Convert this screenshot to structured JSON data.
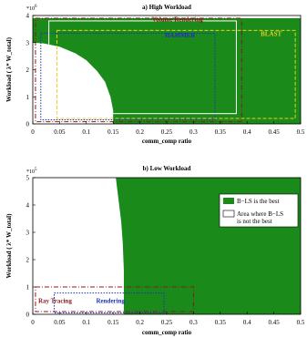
{
  "chart_data": [
    {
      "type": "area",
      "title": "a)  High Workload",
      "xlabel": "comm_comp ratio",
      "ylabel": "Workload ( λ* W_total)",
      "x_ticks": [
        0,
        0.05,
        0.1,
        0.15,
        0.2,
        0.25,
        0.3,
        0.35,
        0.4,
        0.45,
        0.5
      ],
      "y_ticks": [
        0,
        1,
        2,
        3,
        4
      ],
      "y_multiplier": "*10",
      "y_multiplier_exp": "6",
      "xlim": [
        0,
        0.5
      ],
      "ylim": [
        0,
        4
      ],
      "region": {
        "label": "B-LS is the best",
        "color": "#1a8a1a",
        "white_region_boundary": {
          "x": [
            0,
            0.02,
            0.05,
            0.08,
            0.1,
            0.12,
            0.135,
            0.145,
            0.15,
            0.15
          ],
          "y": [
            3.0,
            2.97,
            2.85,
            2.6,
            2.35,
            1.95,
            1.55,
            1.0,
            0.5,
            0
          ]
        },
        "extent": {
          "x": [
            0,
            0.5
          ],
          "y": [
            0,
            3.9
          ]
        }
      },
      "application_boxes": [
        {
          "label": "Volume Rendering",
          "color": "#8b1a1a",
          "x": [
            0.005,
            0.39
          ],
          "y": [
            0.08,
            3.9
          ],
          "line": "dash-dot"
        },
        {
          "label": "BLAST",
          "color": "#e8d020",
          "x": [
            0.045,
            0.49
          ],
          "y": [
            0.2,
            3.45
          ],
          "line": "dashed"
        },
        {
          "label": "HAMMER",
          "color": "#2030c0",
          "x": [
            0.015,
            0.34
          ],
          "y": [
            0.15,
            3.35
          ],
          "line": "dotted"
        },
        {
          "label": "",
          "color": "#ffffff",
          "x": [
            0.03,
            0.38
          ],
          "y": [
            0.38,
            3.8
          ],
          "line": "solid"
        }
      ]
    },
    {
      "type": "area",
      "title": "b)  Low Workload",
      "xlabel": "comm_comp ratio",
      "ylabel": "Workload ( λ* W_total)",
      "x_ticks": [
        0,
        0.05,
        0.1,
        0.15,
        0.2,
        0.25,
        0.3,
        0.35,
        0.4,
        0.45,
        0.5
      ],
      "y_ticks": [
        0,
        1,
        2,
        3,
        4,
        5
      ],
      "y_multiplier": "*10",
      "y_multiplier_exp": "5",
      "xlim": [
        0,
        0.5
      ],
      "ylim": [
        0,
        5
      ],
      "region": {
        "label": "B-LS is the best",
        "color": "#1a8a1a",
        "boundary": {
          "x": [
            0.155,
            0.16,
            0.165,
            0.168,
            0.17,
            0.17
          ],
          "y": [
            5.0,
            4.2,
            3.4,
            2.6,
            1.6,
            0
          ]
        },
        "extent": {
          "x": [
            0.155,
            0.5
          ],
          "y": [
            0,
            5
          ]
        }
      },
      "application_boxes": [
        {
          "label": "Ray Tracing",
          "color": "#8b1a1a",
          "x": [
            0.005,
            0.3
          ],
          "y": [
            0.1,
            1.0
          ],
          "line": "dash-dot"
        },
        {
          "label": "Rendering",
          "color": "#2030c0",
          "x": [
            0.04,
            0.245
          ],
          "y": [
            0.05,
            0.78
          ],
          "line": "dotted"
        }
      ],
      "legend": {
        "placement": "right",
        "entries": [
          {
            "label": "B−LS is the best",
            "color": "#1a8a1a"
          },
          {
            "label": "Area where B−LS is not the best",
            "label_lines": [
              "Area where B−LS",
              "is not the best"
            ],
            "color": "#ffffff"
          }
        ]
      }
    }
  ]
}
